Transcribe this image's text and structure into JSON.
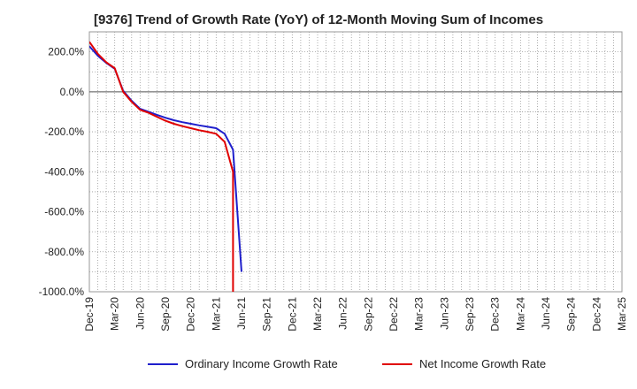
{
  "chart_data": {
    "type": "line",
    "title": "[9376]  Trend of Growth Rate (YoY) of 12-Month Moving Sum of Incomes",
    "xlabel": "",
    "ylabel": "",
    "ylim": [
      -1000,
      300
    ],
    "y_ticks": [
      200,
      0,
      -200,
      -400,
      -600,
      -800,
      -1000
    ],
    "y_tick_labels": [
      "200.0%",
      "0.0%",
      "-200.0%",
      "-400.0%",
      "-600.0%",
      "-800.0%",
      "-1000.0%"
    ],
    "x_tick_labels": [
      "Dec-19",
      "Mar-20",
      "Jun-20",
      "Sep-20",
      "Dec-20",
      "Mar-21",
      "Jun-21",
      "Sep-21",
      "Dec-21",
      "Mar-22",
      "Jun-22",
      "Sep-22",
      "Dec-22",
      "Mar-23",
      "Jun-23",
      "Sep-23",
      "Dec-23",
      "Mar-24",
      "Jun-24",
      "Sep-24",
      "Dec-24",
      "Mar-25"
    ],
    "grid": true,
    "legend_position": "bottom",
    "series": [
      {
        "name": "Ordinary Income Growth Rate",
        "color": "#1f1fcc",
        "points": [
          [
            "Dec-19",
            228
          ],
          [
            "Jan-20",
            180
          ],
          [
            "Feb-20",
            145
          ],
          [
            "Mar-20",
            115
          ],
          [
            "Apr-20",
            5
          ],
          [
            "May-20",
            -45
          ],
          [
            "Jun-20",
            -85
          ],
          [
            "Jul-20",
            -100
          ],
          [
            "Aug-20",
            -115
          ],
          [
            "Sep-20",
            -130
          ],
          [
            "Oct-20",
            -142
          ],
          [
            "Nov-20",
            -152
          ],
          [
            "Dec-20",
            -160
          ],
          [
            "Jan-21",
            -168
          ],
          [
            "Feb-21",
            -175
          ],
          [
            "Mar-21",
            -182
          ],
          [
            "Apr-21",
            -210
          ],
          [
            "May-21",
            -290
          ],
          [
            "Jun-21",
            -900
          ]
        ]
      },
      {
        "name": "Net Income Growth Rate",
        "color": "#e00000",
        "points": [
          [
            "Dec-19",
            250
          ],
          [
            "Jan-20",
            190
          ],
          [
            "Feb-20",
            148
          ],
          [
            "Mar-20",
            118
          ],
          [
            "Apr-20",
            0
          ],
          [
            "May-20",
            -50
          ],
          [
            "Jun-20",
            -90
          ],
          [
            "Jul-20",
            -105
          ],
          [
            "Aug-20",
            -125
          ],
          [
            "Sep-20",
            -145
          ],
          [
            "Oct-20",
            -160
          ],
          [
            "Nov-20",
            -172
          ],
          [
            "Dec-20",
            -182
          ],
          [
            "Jan-21",
            -192
          ],
          [
            "Feb-21",
            -200
          ],
          [
            "Mar-21",
            -210
          ],
          [
            "Apr-21",
            -250
          ],
          [
            "May-21",
            -400
          ],
          [
            "May-21",
            -1000
          ]
        ]
      }
    ]
  }
}
